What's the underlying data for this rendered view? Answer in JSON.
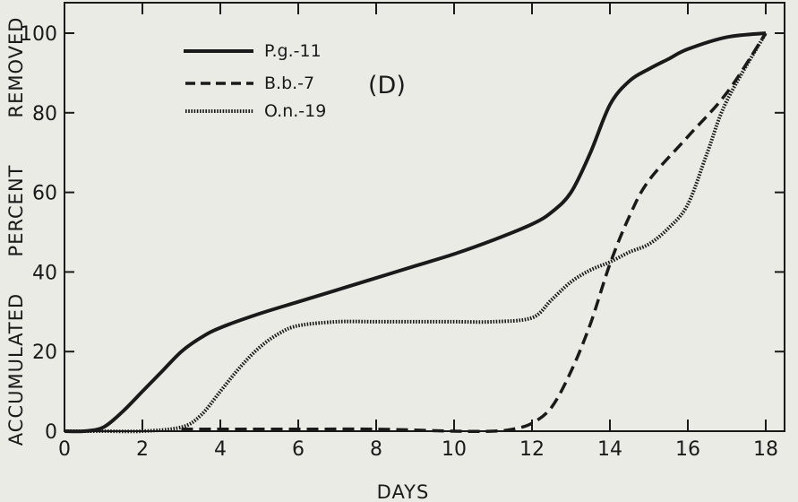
{
  "chart_data": {
    "type": "line",
    "panel_label": "(D)",
    "xlabel": "DAYS",
    "ylabel_parts": [
      "ACCUMULATED",
      "PERCENT",
      "REMOVED"
    ],
    "xlim": [
      0,
      18
    ],
    "ylim": [
      0,
      105
    ],
    "xticks": [
      0,
      2,
      4,
      6,
      8,
      10,
      12,
      14,
      16,
      18
    ],
    "yticks": [
      0,
      20,
      40,
      60,
      80,
      100
    ],
    "grid": false,
    "legend_position": "top-left",
    "series": [
      {
        "name": "P.g.-11",
        "style": "solid",
        "x": [
          0,
          0.5,
          1,
          1.5,
          2,
          2.5,
          3,
          3.5,
          4,
          5,
          6,
          7,
          8,
          9,
          10,
          11,
          12,
          12.5,
          13,
          13.5,
          14,
          14.5,
          15,
          15.5,
          16,
          17,
          18
        ],
        "y": [
          0,
          0,
          1,
          5,
          10,
          15,
          20,
          23.5,
          26,
          29.5,
          32.5,
          35.5,
          38.5,
          41.5,
          44.5,
          48,
          52,
          55,
          60,
          70,
          82,
          88,
          91,
          93.5,
          96,
          99,
          100
        ]
      },
      {
        "name": "B.b.-7",
        "style": "dashed",
        "x": [
          3,
          4,
          6,
          8,
          10,
          11,
          11.5,
          12,
          12.5,
          13,
          13.5,
          14,
          14.5,
          15,
          16,
          17,
          18
        ],
        "y": [
          0.5,
          0.5,
          0.5,
          0.5,
          0,
          0,
          0.5,
          2,
          6,
          15,
          27,
          42,
          54,
          63,
          74,
          85,
          100
        ]
      },
      {
        "name": "O.n.-19",
        "style": "dotted",
        "x": [
          0,
          1,
          2,
          3,
          3.5,
          4,
          4.5,
          5,
          5.5,
          6,
          7,
          8,
          9,
          10,
          11,
          12,
          12.5,
          13,
          13.5,
          14,
          14.5,
          15,
          15.5,
          16,
          16.5,
          17,
          18
        ],
        "y": [
          0,
          0,
          0,
          1,
          4,
          10,
          16,
          21,
          24.5,
          26.5,
          27.5,
          27.5,
          27.5,
          27.5,
          27.5,
          28.5,
          33,
          37.5,
          40.5,
          42.5,
          45,
          47,
          51,
          57,
          70,
          83,
          100
        ]
      }
    ]
  },
  "colors": {
    "ink": "#1a1a1a",
    "background": "#ebebe6"
  }
}
